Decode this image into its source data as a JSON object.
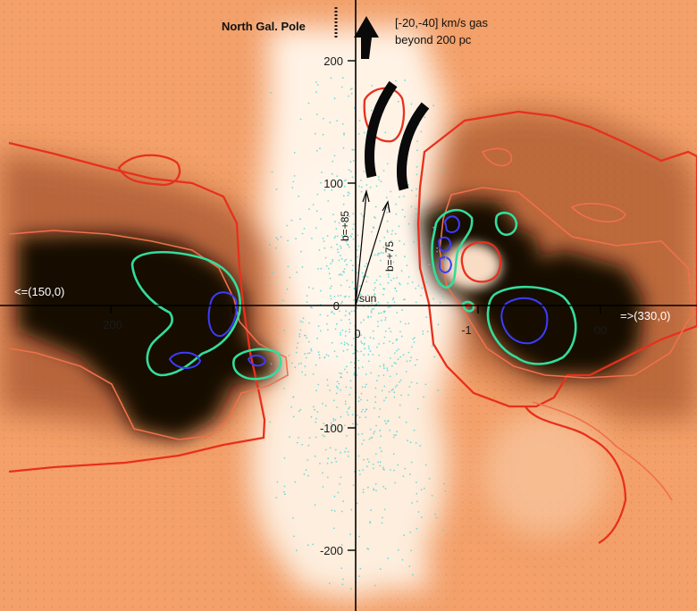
{
  "figure": {
    "pole_label": "North Gal. Pole",
    "gas_note_line1": "[-20,-40] km/s gas",
    "gas_note_line2": "beyond 200 pc",
    "left_direction": "<=(150,0)",
    "right_direction": "=>(330,0)",
    "sun_label": "sun",
    "vector_b85_label": "b=+85",
    "vector_b75_label": "b=+75"
  },
  "axes": {
    "x_ticks": [
      "200",
      "0",
      "-1",
      "00"
    ],
    "y_ticks": [
      "200",
      "100",
      "0",
      "-100",
      "-200"
    ]
  },
  "colors": {
    "background_orange": "#f3a06a",
    "dark_cavity": "#120804",
    "pale_region": "#fdeede",
    "red_contour": "#e8301c",
    "salmon_contour": "#f0704a",
    "green_contour": "#33dd9c",
    "blue_contour": "#3c3cff",
    "star_dots": "#4fd6d6"
  }
}
